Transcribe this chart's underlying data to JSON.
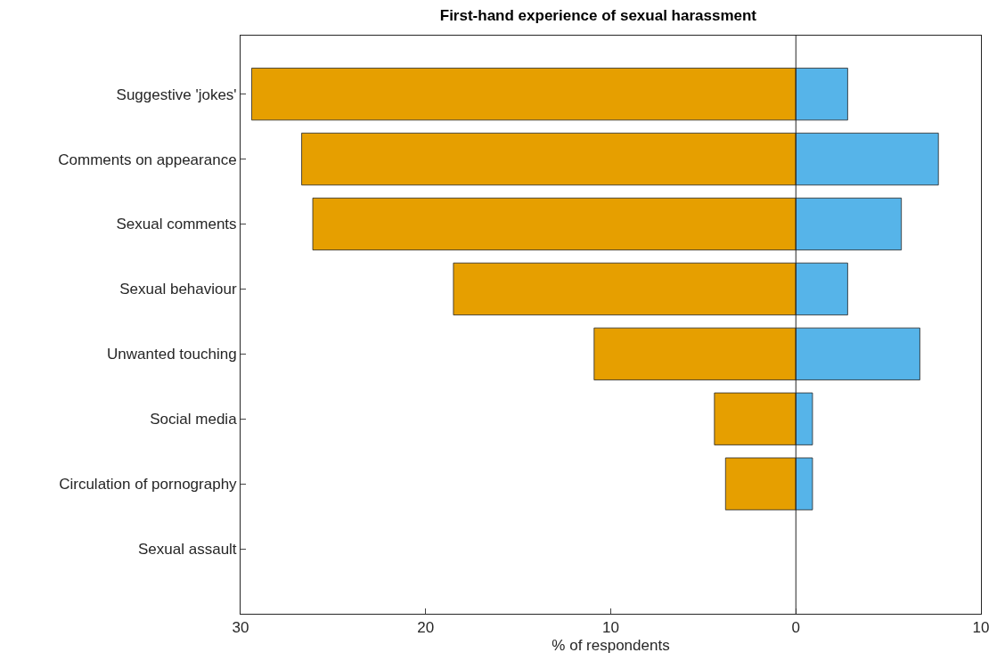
{
  "chart_data": {
    "type": "bar",
    "orientation": "horizontal",
    "stacked": true,
    "title": "First-hand experience of sexual harassment",
    "xlabel": "% of respondents",
    "categories": [
      "Suggestive 'jokes'",
      "Comments on appearance",
      "Sexual comments",
      "Sexual behaviour",
      "Unwanted touching",
      "Social media",
      "Circulation of pornography",
      "Sexual assault"
    ],
    "series": [
      {
        "color": "#e69f00",
        "values": [
          -29.4,
          -26.7,
          -26.1,
          -18.5,
          -10.9,
          -4.4,
          -3.8,
          0
        ]
      },
      {
        "color": "#56b4e9",
        "values": [
          2.8,
          7.7,
          5.7,
          2.8,
          6.7,
          0.9,
          0.9,
          0
        ]
      }
    ],
    "xlim": [
      -30,
      10
    ],
    "xticks": [
      {
        "value": -30,
        "label": "30"
      },
      {
        "value": -20,
        "label": "20"
      },
      {
        "value": -10,
        "label": "10"
      },
      0,
      10
    ],
    "ref_lines": [
      {
        "axis": "x",
        "value": 0,
        "color": "#262626"
      }
    ]
  }
}
